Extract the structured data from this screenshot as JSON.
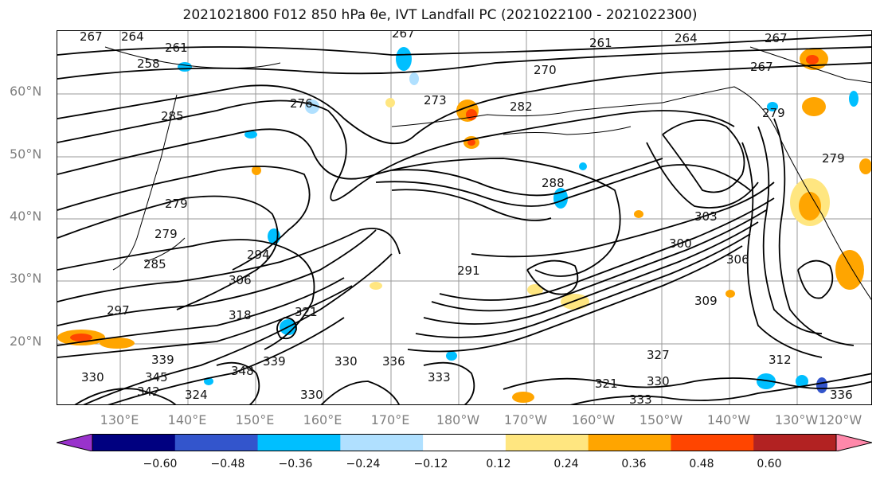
{
  "title": "2021021800 F012 850 hPa θe, IVT Landfall PC (2021022100 - 2021022300)",
  "map": {
    "lat_labels": [
      "60°N",
      "50°N",
      "40°N",
      "30°N",
      "20°N"
    ],
    "lon_labels": [
      "130°E",
      "140°E",
      "150°E",
      "160°E",
      "170°E",
      "180°W",
      "170°W",
      "160°W",
      "150°W",
      "140°W",
      "130°W",
      "120°W"
    ],
    "contour_labels": [
      "267",
      "264",
      "261",
      "267",
      "261",
      "264",
      "267",
      "258",
      "270",
      "267",
      "276",
      "273",
      "282",
      "279",
      "285",
      "288",
      "279",
      "279",
      "279",
      "294",
      "285",
      "303",
      "306",
      "300",
      "291",
      "297",
      "318",
      "306",
      "309",
      "321",
      "330",
      "330",
      "339",
      "339",
      "336",
      "342",
      "345",
      "348",
      "330",
      "333",
      "327",
      "321",
      "330",
      "312",
      "333",
      "336",
      "324"
    ]
  },
  "colorbar": {
    "ticks": [
      "−0.60",
      "−0.48",
      "−0.36",
      "−0.24",
      "−0.12",
      "0.12",
      "0.24",
      "0.36",
      "0.48",
      "0.60"
    ],
    "colors": [
      "#9932cc",
      "#000080",
      "#3355cc",
      "#00bfff",
      "#b0e0ff",
      "#ffffff",
      "#ffe680",
      "#ffa500",
      "#ff4500",
      "#b22222",
      "#ff88aa"
    ]
  }
}
